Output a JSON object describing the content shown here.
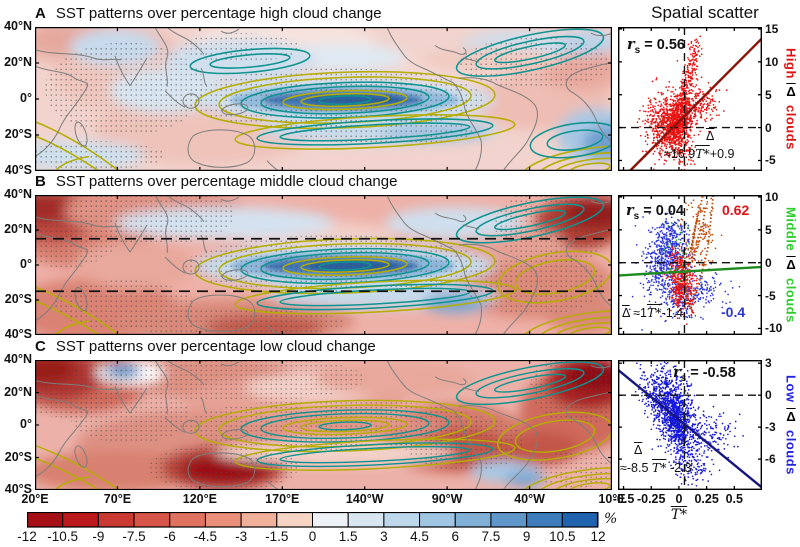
{
  "header": {
    "scatter_title": "Spatial scatter"
  },
  "panels": [
    {
      "letter": "A",
      "title": "SST patterns over percentage high cloud change",
      "lat_ticks": [
        "40°N",
        "20°N",
        "0°",
        "20°S",
        "40°S"
      ],
      "scatter": {
        "r_prefix": "r",
        "r_sub": "s",
        "r_value": "= 0.56",
        "yticks": [
          "15",
          "10",
          "5",
          "0",
          "-5"
        ],
        "ylabel_parts": [
          {
            "t": "High",
            "c": "#e01212",
            "rot": true
          },
          {
            "t": "Δ",
            "c": "#000000",
            "rot": false
          },
          {
            "t": "clouds",
            "c": "#e01212",
            "rot": true
          }
        ],
        "fit_lines": [
          [
            {
              "t": "Δ",
              "s": "ovl"
            }
          ],
          [
            {
              "t": "≈16.9"
            },
            {
              "t": "T*",
              "s": "ovl ital"
            },
            {
              "t": "+0.9"
            }
          ]
        ],
        "point_color": "#e81210",
        "line_color": "#8b1208"
      }
    },
    {
      "letter": "B",
      "title": "SST patterns over percentage middle cloud change",
      "lat_ticks": [
        "40°N",
        "20°N",
        "0°",
        "20°S",
        "40°S"
      ],
      "scatter": {
        "r_prefix": "r",
        "r_sub": "s",
        "r_value": "= 0.04",
        "yticks": [
          "10",
          "5",
          "0",
          "-5",
          "-10"
        ],
        "ylabel_parts": [
          {
            "t": "Middle",
            "c": "#2ecc2e",
            "rot": true
          },
          {
            "t": "Δ",
            "c": "#000000",
            "rot": false
          },
          {
            "t": "clouds",
            "c": "#2ecc2e",
            "rot": true
          }
        ],
        "fit_lines": [
          [
            {
              "t": "Δ",
              "s": "ovl"
            },
            {
              "t": " ≈1"
            },
            {
              "t": "T*",
              "s": "ovl ital"
            },
            {
              "t": "-1.4"
            }
          ]
        ],
        "annotations": {
          "pos": "0.62",
          "pos_color": "#e01212",
          "neg": "-0.4",
          "neg_color": "#2a35d8"
        },
        "point_color": "#2a35d8",
        "line_color": "#1e8c1e"
      }
    },
    {
      "letter": "C",
      "title": "SST patterns over percentage low cloud change",
      "lat_ticks": [
        "40°N",
        "20°N",
        "0°",
        "20°S",
        "40°S"
      ],
      "scatter": {
        "r_prefix": "r",
        "r_sub": "s",
        "r_value": "= -0.58",
        "yticks": [
          "3",
          "0",
          "-3",
          "-6"
        ],
        "ylabel_parts": [
          {
            "t": "Low",
            "c": "#2222e0",
            "rot": true
          },
          {
            "t": "Δ",
            "c": "#000000",
            "rot": false
          },
          {
            "t": "clouds",
            "c": "#2222e0",
            "rot": true
          }
        ],
        "fit_lines": [
          [
            {
              "t": "Δ",
              "s": "ovl"
            }
          ],
          [
            {
              "t": "≈-8.5 "
            },
            {
              "t": "T*",
              "s": "ovl ital"
            },
            {
              "t": " -2.3"
            }
          ]
        ],
        "point_color": "#1518d6",
        "line_color": "#16167e"
      }
    }
  ],
  "x_axis": {
    "lon_ticks": [
      "20°E",
      "70°E",
      "120°E",
      "170°E",
      "140°W",
      "90°W",
      "40°W",
      "10°E"
    ]
  },
  "scatter_axis": {
    "xticks": [
      "-0.5",
      "-0.25",
      "0",
      "0.25",
      "0.5"
    ],
    "xlabel": "T*"
  },
  "colorbar": {
    "unit": "%",
    "tick_labels": [
      "-12",
      "-10.5",
      "-9",
      "-7.5",
      "-6",
      "-4.5",
      "-3",
      "-1.5",
      "0",
      "1.5",
      "3",
      "4.5",
      "6",
      "7.5",
      "9",
      "10.5",
      "12"
    ],
    "colors": [
      "#a50f15",
      "#bb191d",
      "#ca3a33",
      "#d65548",
      "#e07260",
      "#e98f7a",
      "#f1b09a",
      "#f7d5c4",
      "#eef2f7",
      "#d8e6f2",
      "#bdd7eb",
      "#a0c5e2",
      "#81b0d7",
      "#5f97ca",
      "#3d7dbc",
      "#2063ae"
    ]
  },
  "chart_data": [
    {
      "type": "heatmap",
      "panel": "A",
      "title": "SST patterns over percentage high cloud change",
      "x_ticks": [
        "20°E",
        "70°E",
        "120°E",
        "170°E",
        "140°W",
        "90°W",
        "40°W",
        "10°E"
      ],
      "y_ticks": [
        "40°N",
        "20°N",
        "0°",
        "20°S",
        "40°S"
      ],
      "value_unit": "%",
      "value_range": [
        -12,
        12
      ],
      "description": "ENSO-like SST regression pattern: blue (negative) tongue along equatorial central-eastern Pacific outlined by nested yellow/teal contours, light warm (pink) anomalies over most other oceans, stippling marks significance"
    },
    {
      "type": "scatter",
      "panel": "A",
      "series_name": "High cloud change vs SST",
      "r_s": 0.56,
      "regression": {
        "slope": 16.9,
        "intercept": 0.9
      },
      "fit_text": "Δ̄ ≈ 16.9·T̄* + 0.9",
      "xlim": [
        -0.55,
        0.75
      ],
      "ylim": [
        -6.6,
        15.3
      ],
      "xticks": [
        -0.5,
        -0.25,
        0,
        0.25,
        0.5
      ],
      "yticks": [
        15,
        10,
        5,
        0,
        -5
      ],
      "xlabel": "T̄*",
      "ylabel": "High Δ̄ clouds",
      "point_color": "#e81210",
      "line_color": "#8b1208",
      "dashed_x": 0.05,
      "dashed_y": 0
    },
    {
      "type": "heatmap",
      "panel": "B",
      "title": "SST patterns over percentage middle cloud change",
      "x_ticks": [
        "20°E",
        "70°E",
        "120°E",
        "170°E",
        "140°W",
        "90°W",
        "40°W",
        "10°E"
      ],
      "y_ticks": [
        "40°N",
        "20°N",
        "0°",
        "20°S",
        "40°S"
      ],
      "value_unit": "%",
      "value_range": [
        -12,
        12
      ],
      "dashed_latitudes": [
        "15°N",
        "15°S"
      ],
      "description": "Stronger warm (red) pattern with dark red patches in NW Asia and subtropical North Atlantic, blue equatorial Pacific tongue with yellow/teal contours, dashed lines at 15N/15S separating tropics from extratropics"
    },
    {
      "type": "scatter",
      "panel": "B",
      "series_name": "Middle cloud change vs SST",
      "r_s": 0.04,
      "regression": {
        "slope": 1,
        "intercept": -1.4
      },
      "fit_text": "Δ̄ ≈ 1·T̄* - 1.4",
      "subset_correlations": [
        {
          "value": 0.62,
          "color": "#e01212"
        },
        {
          "value": -0.4,
          "color": "#2a35d8"
        }
      ],
      "xlim": [
        -0.55,
        0.75
      ],
      "ylim": [
        -11,
        10.3
      ],
      "xticks": [
        -0.5,
        -0.25,
        0,
        0.25,
        0.5
      ],
      "yticks": [
        10,
        5,
        0,
        -5,
        -10
      ],
      "xlabel": "T̄*",
      "ylabel": "Middle Δ̄ clouds",
      "point_colors": [
        "#2a35d8",
        "#e81210",
        "#bf4a08",
        "#22aa33"
      ],
      "line_color": "#1e8c1e",
      "dashed_x": 0.05,
      "dashed_y": 0
    },
    {
      "type": "heatmap",
      "panel": "C",
      "title": "SST patterns over percentage low cloud change",
      "x_ticks": [
        "20°E",
        "70°E",
        "120°E",
        "170°E",
        "140°W",
        "90°W",
        "40°W",
        "10°E"
      ],
      "y_ticks": [
        "40°N",
        "20°N",
        "0°",
        "20°S",
        "40°S"
      ],
      "value_unit": "%",
      "value_range": [
        -12,
        12
      ],
      "description": "Broad warm (red) pattern with dark red maxima over NW corner, Australia region and NE Atlantic, small white/blue blob near 60E 35N, equatorial Pacific contour wedge mostly pink inside"
    },
    {
      "type": "scatter",
      "panel": "C",
      "series_name": "Low cloud change vs SST",
      "r_s": -0.58,
      "regression": {
        "slope": -8.5,
        "intercept": -2.3
      },
      "fit_text": "Δ̄ ≈ -8.5·T̄* - 2.3",
      "xlim": [
        -0.55,
        0.75
      ],
      "ylim": [
        -8.9,
        3.3
      ],
      "xticks": [
        -0.5,
        -0.25,
        0,
        0.25,
        0.5
      ],
      "yticks": [
        3,
        0,
        -3,
        -6
      ],
      "xlabel": "T̄*",
      "ylabel": "Low Δ̄ clouds",
      "point_color": "#1518d6",
      "line_color": "#16167e",
      "dashed_x": 0.05,
      "dashed_y": 0
    },
    {
      "type": "colorbar",
      "unit": "%",
      "ticks": [
        -12,
        -10.5,
        -9,
        -7.5,
        -6,
        -4.5,
        -3,
        -1.5,
        0,
        1.5,
        3,
        4.5,
        6,
        7.5,
        9,
        10.5,
        12
      ],
      "colors": [
        "#a50f15",
        "#bb191d",
        "#ca3a33",
        "#d65548",
        "#e07260",
        "#e98f7a",
        "#f1b09a",
        "#f7d5c4",
        "#eef2f7",
        "#d8e6f2",
        "#bdd7eb",
        "#a0c5e2",
        "#81b0d7",
        "#5f97ca",
        "#3d7dbc",
        "#2063ae"
      ]
    }
  ]
}
